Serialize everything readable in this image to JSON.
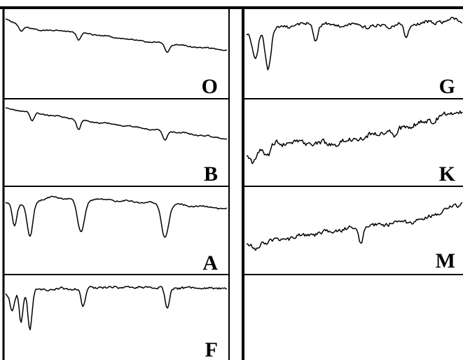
{
  "figure": {
    "colors": {
      "background": "#ffffff",
      "ink": "#000000"
    },
    "panels": [
      {
        "id": "O",
        "label": "O",
        "column": "left",
        "row": 0,
        "trace": "O"
      },
      {
        "id": "B",
        "label": "B",
        "column": "left",
        "row": 1,
        "trace": "B"
      },
      {
        "id": "A",
        "label": "A",
        "column": "left",
        "row": 2,
        "trace": "A"
      },
      {
        "id": "F",
        "label": "F",
        "column": "left",
        "row": 3,
        "trace": "F"
      },
      {
        "id": "G",
        "label": "G",
        "column": "right",
        "row": 0,
        "trace": "G"
      },
      {
        "id": "K",
        "label": "K",
        "column": "right",
        "row": 1,
        "trace": "K"
      },
      {
        "id": "M",
        "label": "M",
        "column": "right",
        "row": 2,
        "trace": "M"
      },
      {
        "id": "empty",
        "label": "",
        "column": "right",
        "row": 3,
        "trace": null
      }
    ]
  }
}
